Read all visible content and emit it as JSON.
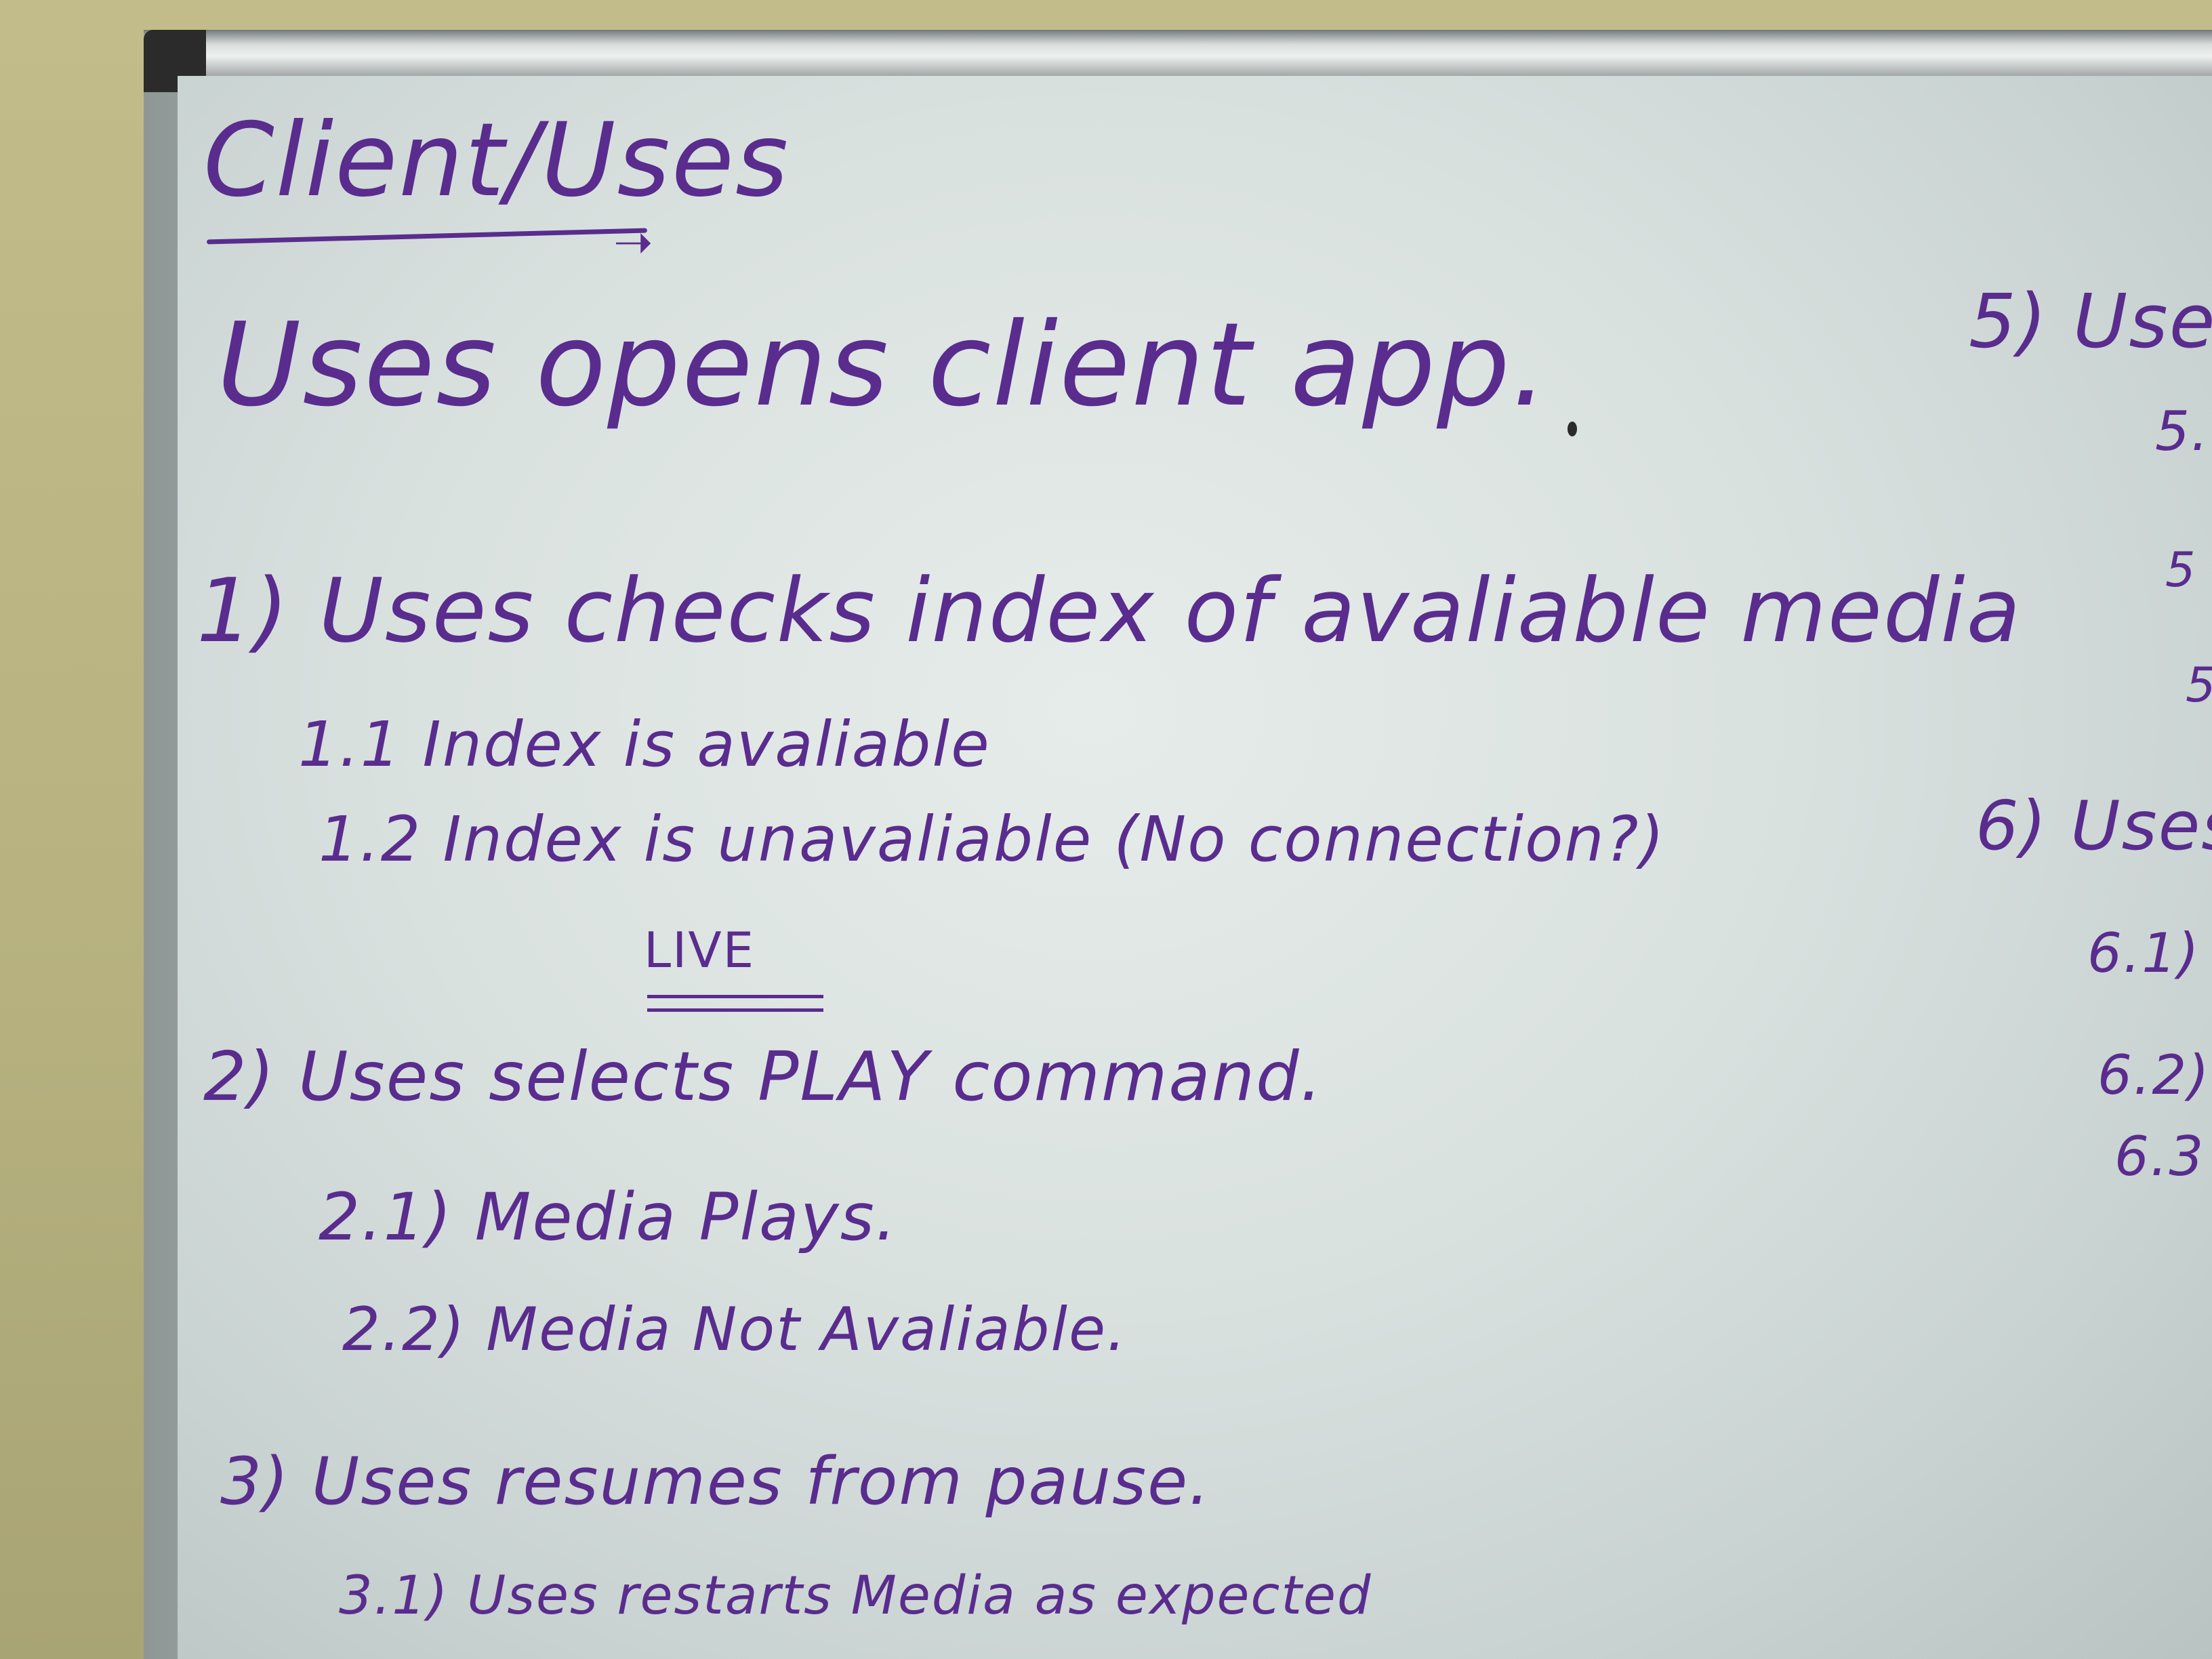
{
  "whiteboard": {
    "title": "Client/Uses",
    "left_column": {
      "opening": "Uses  opens client app.",
      "step1": "1) Uses checks index of avaliable media",
      "step1_1": "1.1  Index is avaliable",
      "step1_2": "1.2  Index is unavaliable (No connection?)",
      "live_label": "LIVE",
      "step2": "2) Uses selects PLAY command.",
      "step2_1": "2.1) Media Plays.",
      "step2_2": "2.2) Media Not Avaliable.",
      "step3": "3) Uses resumes from pause.",
      "step3_1": "3.1) Uses restarts Media as expected"
    },
    "right_column": {
      "step5": "5) Use",
      "step5_a": "5.",
      "step5_b": "5",
      "step5_c": "5",
      "step6": "6) Uses",
      "step6_1": "6.1)",
      "step6_2": "6.2)",
      "step6_3": "6.3"
    },
    "ink_color": "#5a2c8e"
  }
}
